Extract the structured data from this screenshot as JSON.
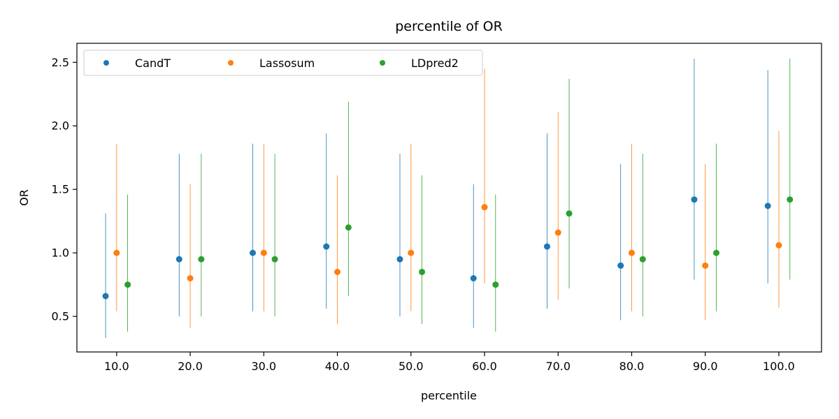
{
  "chart_data": {
    "type": "scatter",
    "title": "percentile of OR",
    "xlabel": "percentile",
    "ylabel": "OR",
    "x_ticks": [
      "10.0",
      "20.0",
      "30.0",
      "40.0",
      "50.0",
      "60.0",
      "70.0",
      "80.0",
      "90.0",
      "100.0"
    ],
    "x_values": [
      10,
      20,
      30,
      40,
      50,
      60,
      70,
      80,
      90,
      100
    ],
    "y_ticks": [
      "0.5",
      "1.0",
      "1.5",
      "2.0",
      "2.5"
    ],
    "xlim": [
      4.6,
      105.8
    ],
    "ylim": [
      0.22,
      2.65
    ],
    "grid": false,
    "legend_position": "top-left",
    "legend_columns": 3,
    "series": [
      {
        "name": "CandT",
        "color": "#1f77b4",
        "x_offset": -1.5,
        "values": [
          0.66,
          0.95,
          1.0,
          1.05,
          0.95,
          0.8,
          1.05,
          0.9,
          1.42,
          1.37
        ],
        "lower": [
          0.33,
          0.5,
          0.54,
          0.56,
          0.5,
          0.41,
          0.56,
          0.47,
          0.79,
          0.76
        ],
        "upper": [
          1.31,
          1.78,
          1.86,
          1.94,
          1.78,
          1.54,
          1.94,
          1.7,
          2.53,
          2.44
        ]
      },
      {
        "name": "Lassosum",
        "color": "#ff7f0e",
        "x_offset": 0,
        "values": [
          1.0,
          0.8,
          1.0,
          0.85,
          1.0,
          1.36,
          1.16,
          1.0,
          0.9,
          1.06
        ],
        "lower": [
          0.54,
          0.41,
          0.54,
          0.44,
          0.54,
          0.76,
          0.63,
          0.54,
          0.47,
          0.57
        ],
        "upper": [
          1.86,
          1.54,
          1.86,
          1.61,
          1.86,
          2.45,
          2.11,
          1.86,
          1.7,
          1.96
        ]
      },
      {
        "name": "LDpred2",
        "color": "#2ca02c",
        "x_offset": 1.5,
        "values": [
          0.75,
          0.95,
          0.95,
          1.2,
          0.85,
          0.75,
          1.31,
          0.95,
          1.0,
          1.42
        ],
        "lower": [
          0.38,
          0.5,
          0.5,
          0.66,
          0.44,
          0.38,
          0.72,
          0.5,
          0.54,
          0.79
        ],
        "upper": [
          1.46,
          1.78,
          1.78,
          2.19,
          1.61,
          1.46,
          2.37,
          1.78,
          1.86,
          2.53
        ]
      }
    ]
  }
}
